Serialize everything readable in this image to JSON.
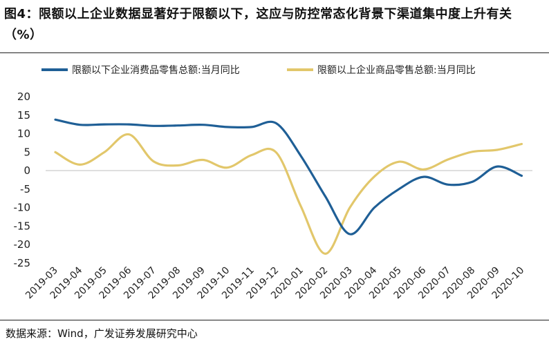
{
  "title": "图4：限额以上企业数据显著好于限额以下，这应与防控常态化背景下渠道集中度上升有关（%）",
  "source": "数据来源：Wind，广发证券发展研究中心",
  "chart_data": {
    "type": "line",
    "title": "图4：限额以上企业数据显著好于限额以下，这应与防控常态化背景下渠道集中度上升有关（%）",
    "xlabel": "",
    "ylabel": "",
    "ylim": [
      -25,
      20
    ],
    "yticks": [
      20,
      15,
      10,
      5,
      0,
      -5,
      -10,
      -15,
      -20,
      -25
    ],
    "grid": false,
    "legend_position": "top",
    "categories": [
      "2019-03",
      "2019-04",
      "2019-05",
      "2019-06",
      "2019-07",
      "2019-08",
      "2019-09",
      "2019-10",
      "2019-11",
      "2019-12",
      "2020-01",
      "2020-02",
      "2020-03",
      "2020-04",
      "2020-05",
      "2020-06",
      "2020-07",
      "2020-08",
      "2020-09",
      "2020-10"
    ],
    "series": [
      {
        "name": "限额以下企业消费品零售总额:当月同比",
        "color": "#1f5f96",
        "values": [
          13.8,
          12.4,
          12.5,
          12.5,
          12.1,
          12.2,
          12.4,
          11.8,
          11.8,
          12.8,
          4.0,
          -7.0,
          -17.2,
          -10.0,
          -5.0,
          -1.7,
          -3.8,
          -3.0,
          1.1,
          -1.4
        ]
      },
      {
        "name": "限额以上企业商品零售总额:当月同比",
        "color": "#e2c76b",
        "values": [
          5.0,
          1.6,
          5.0,
          9.8,
          2.5,
          1.4,
          2.9,
          0.8,
          4.2,
          4.9,
          -9.6,
          -22.5,
          -10.0,
          -1.6,
          2.4,
          0.3,
          3.0,
          5.1,
          5.6,
          7.2
        ]
      }
    ]
  }
}
